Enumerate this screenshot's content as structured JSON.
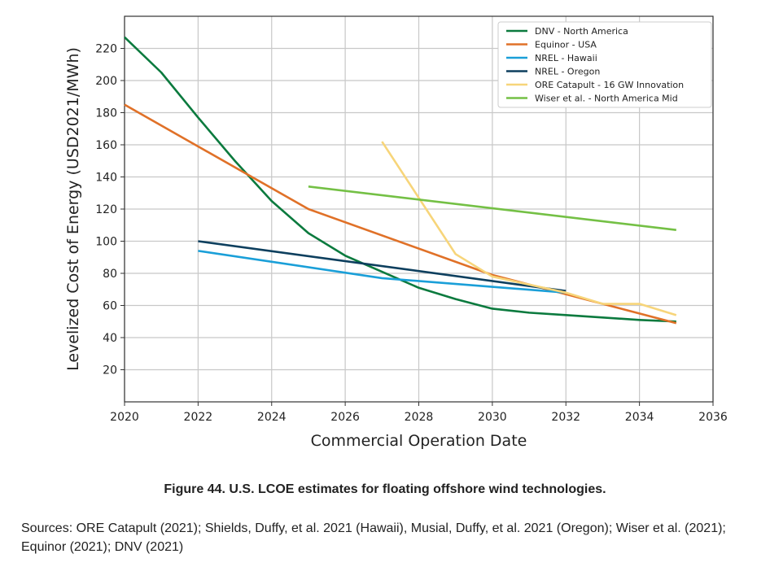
{
  "chart_data": {
    "type": "line",
    "xlabel": "Commercial Operation Date",
    "ylabel": "Levelized Cost of Energy (USD2021/MWh)",
    "xlim": [
      2020,
      2036
    ],
    "ylim": [
      0,
      240
    ],
    "xticks": [
      2020,
      2022,
      2024,
      2026,
      2028,
      2030,
      2032,
      2034,
      2036
    ],
    "yticks": [
      20,
      40,
      60,
      80,
      100,
      120,
      140,
      160,
      180,
      200,
      220
    ],
    "grid": true,
    "legend_position": "top-right",
    "series": [
      {
        "name": "DNV - North America",
        "color": "#0b7a3e",
        "x": [
          2020,
          2021,
          2022,
          2023,
          2024,
          2025,
          2026,
          2027,
          2028,
          2029,
          2030,
          2031,
          2032,
          2033,
          2034,
          2035
        ],
        "y": [
          227,
          205,
          177,
          150,
          125,
          105,
          91,
          81,
          71,
          64,
          58,
          55.5,
          54,
          52.5,
          51,
          50
        ]
      },
      {
        "name": "Equinor - USA",
        "color": "#e07128",
        "x": [
          2020,
          2025,
          2030,
          2035
        ],
        "y": [
          185,
          120,
          79,
          49
        ]
      },
      {
        "name": "NREL - Hawaii",
        "color": "#1a9fd8",
        "x": [
          2022,
          2027,
          2032
        ],
        "y": [
          94,
          77,
          68
        ]
      },
      {
        "name": "NREL - Oregon",
        "color": "#0d3f5e",
        "x": [
          2022,
          2032
        ],
        "y": [
          100,
          69
        ]
      },
      {
        "name": "ORE Catapult - 16 GW Innovation",
        "color": "#f7d57a",
        "x": [
          2027,
          2029,
          2030,
          2032,
          2033,
          2034,
          2035
        ],
        "y": [
          162,
          92,
          78,
          68,
          61,
          61,
          54
        ]
      },
      {
        "name": "Wiser et al. - North America Mid",
        "color": "#74c045",
        "x": [
          2025,
          2035
        ],
        "y": [
          134,
          107
        ]
      }
    ]
  },
  "caption": "Figure 44. U.S. LCOE estimates for floating offshore wind technologies.",
  "sources": "Sources: ORE Catapult (2021); Shields, Duffy, et al. 2021 (Hawaii), Musial, Duffy, et al. 2021 (Oregon); Wiser et al. (2021); Equinor (2021); DNV (2021)"
}
